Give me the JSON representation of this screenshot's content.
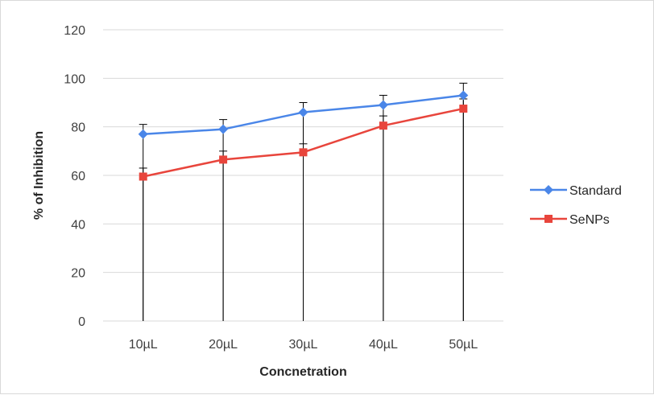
{
  "chart_data": {
    "type": "line",
    "title": "",
    "xlabel": "Concnetration",
    "ylabel": "% of Inhibition",
    "categories": [
      "10µL",
      "20µL",
      "30µL",
      "40µL",
      "50µL"
    ],
    "ylim": [
      0,
      120
    ],
    "yticks": [
      0,
      20,
      40,
      60,
      80,
      100,
      120
    ],
    "grid": true,
    "legend_position": "right",
    "series": [
      {
        "name": "Standard",
        "color": "#4a86e8",
        "marker": "diamond",
        "values": [
          77,
          79,
          86,
          89,
          93
        ],
        "error_upper": [
          4,
          4,
          4,
          4,
          5
        ],
        "error_lower": [
          77,
          79,
          86,
          89,
          93
        ]
      },
      {
        "name": "SeNPs",
        "color": "#e8453c",
        "marker": "square",
        "values": [
          59.5,
          66.5,
          69.5,
          80.5,
          87.5
        ],
        "error_upper": [
          3.5,
          3.5,
          3.5,
          4,
          4
        ],
        "error_lower": [
          59.5,
          66.5,
          69.5,
          80.5,
          87.5
        ]
      }
    ]
  }
}
